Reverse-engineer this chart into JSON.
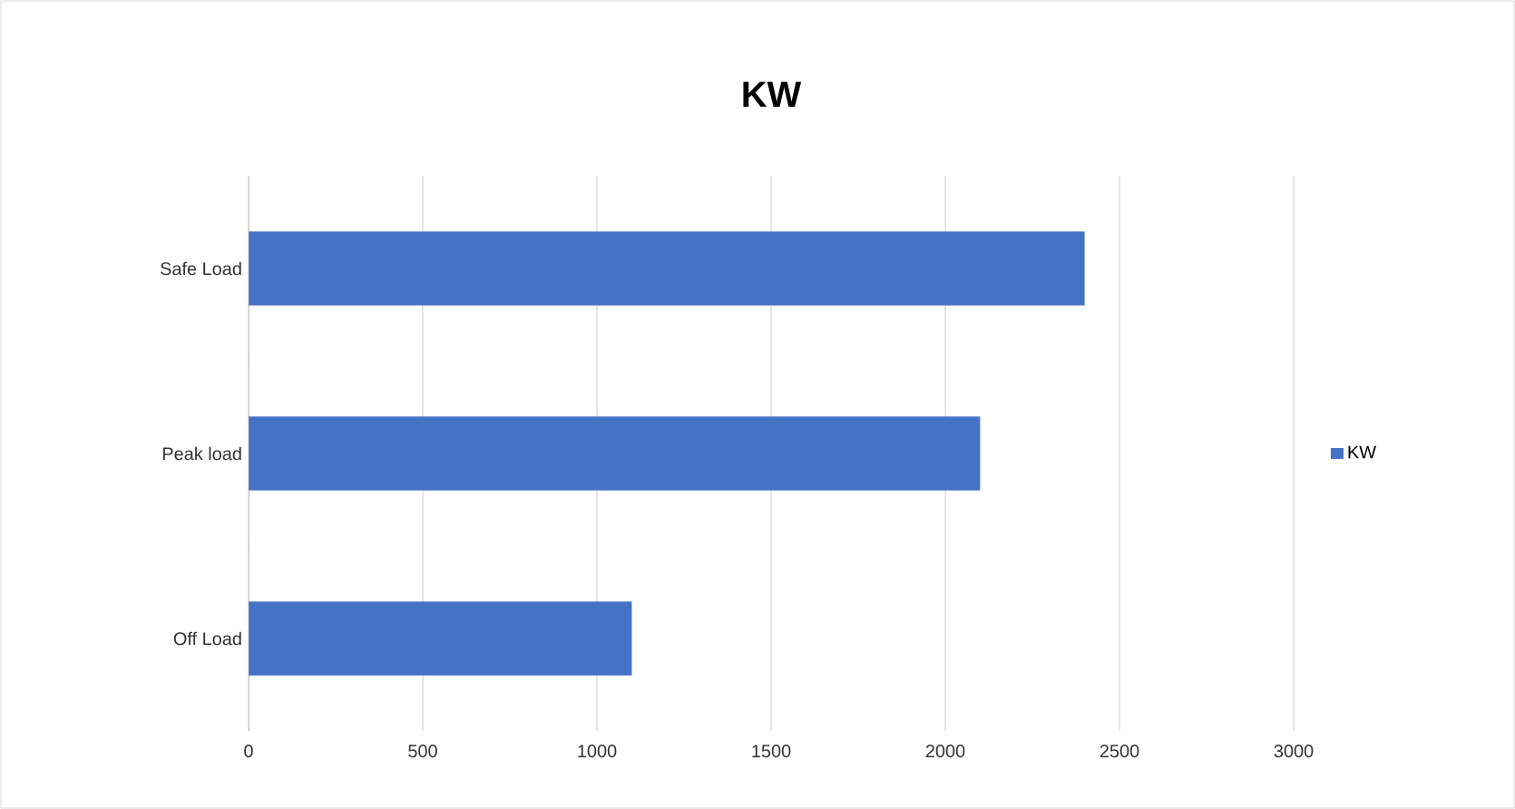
{
  "chart_data": {
    "type": "bar",
    "orientation": "horizontal",
    "title": "KW",
    "categories": [
      "Safe Load",
      "Peak load",
      "Off Load"
    ],
    "series": [
      {
        "name": "KW",
        "color": "#4472c4",
        "values": [
          2400,
          2100,
          1100
        ]
      }
    ],
    "xlim": [
      0,
      3000
    ],
    "xticks": [
      0,
      500,
      1000,
      1500,
      2000,
      2500,
      3000
    ],
    "grid": "x",
    "legend": "right"
  }
}
